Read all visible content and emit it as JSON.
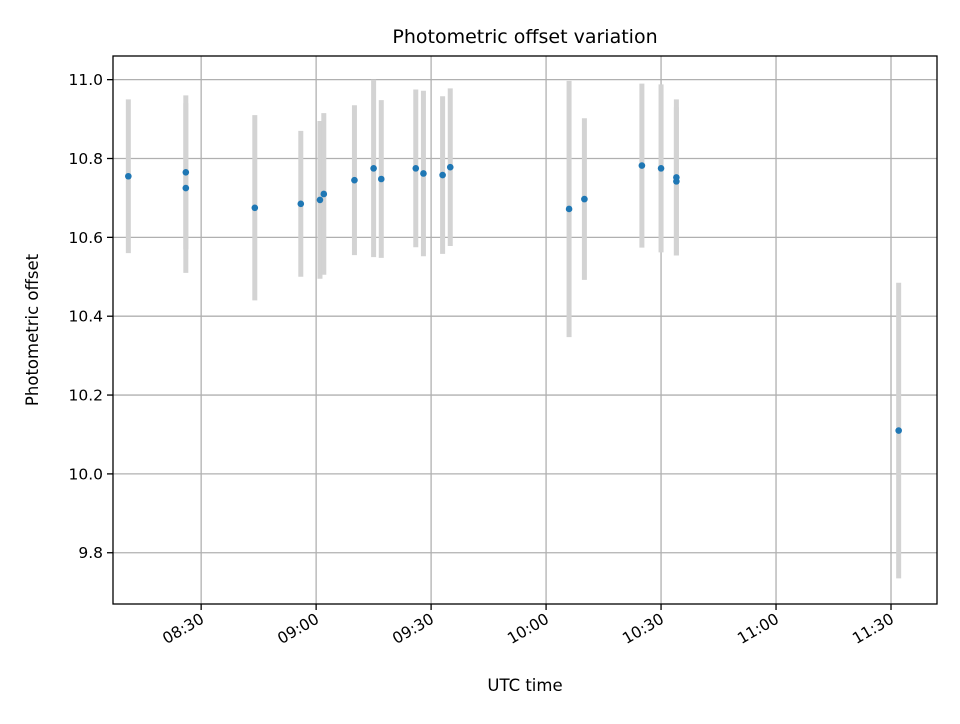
{
  "chart_data": {
    "type": "scatter",
    "title": "Photometric offset variation",
    "xlabel": "UTC time",
    "ylabel": "Photometric offset",
    "xlim": [
      "08:07",
      "11:42"
    ],
    "ylim": [
      9.67,
      11.06
    ],
    "grid": true,
    "legend": "none",
    "colors": {
      "point": "#1f77b4",
      "errorbar": "#d3d3d3"
    },
    "x_ticks": [
      "08:30",
      "09:00",
      "09:30",
      "10:00",
      "10:30",
      "11:00",
      "11:30"
    ],
    "y_ticks": [
      "9.8",
      "10.0",
      "10.2",
      "10.4",
      "10.6",
      "10.8",
      "11.0"
    ],
    "points": [
      {
        "x": "08:11",
        "y": 10.755,
        "err": 0.195
      },
      {
        "x": "08:26",
        "y": 10.765,
        "err": 0.195
      },
      {
        "x": "08:26",
        "y": 10.725,
        "err": 0.215
      },
      {
        "x": "08:44",
        "y": 10.675,
        "err": 0.235
      },
      {
        "x": "08:56",
        "y": 10.685,
        "err": 0.185
      },
      {
        "x": "09:01",
        "y": 10.695,
        "err": 0.2
      },
      {
        "x": "09:02",
        "y": 10.71,
        "err": 0.205
      },
      {
        "x": "09:10",
        "y": 10.745,
        "err": 0.19
      },
      {
        "x": "09:15",
        "y": 10.775,
        "err": 0.225
      },
      {
        "x": "09:17",
        "y": 10.748,
        "err": 0.2
      },
      {
        "x": "09:26",
        "y": 10.775,
        "err": 0.2
      },
      {
        "x": "09:28",
        "y": 10.762,
        "err": 0.21
      },
      {
        "x": "09:33",
        "y": 10.758,
        "err": 0.2
      },
      {
        "x": "09:35",
        "y": 10.778,
        "err": 0.2
      },
      {
        "x": "10:06",
        "y": 10.672,
        "err": 0.325
      },
      {
        "x": "10:10",
        "y": 10.697,
        "err": 0.205
      },
      {
        "x": "10:25",
        "y": 10.782,
        "err": 0.208
      },
      {
        "x": "10:30",
        "y": 10.775,
        "err": 0.213
      },
      {
        "x": "10:34",
        "y": 10.742,
        "err": 0.188
      },
      {
        "x": "10:34",
        "y": 10.752,
        "err": 0.198
      },
      {
        "x": "11:32",
        "y": 10.11,
        "err": 0.375
      }
    ]
  }
}
